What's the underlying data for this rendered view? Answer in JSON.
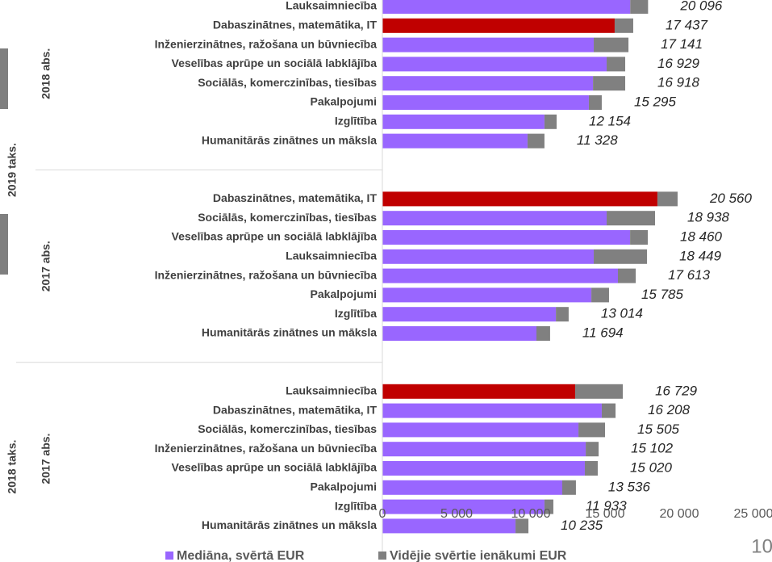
{
  "chart_data": {
    "type": "bar",
    "orientation": "horizontal",
    "xlim": [
      0,
      25000
    ],
    "xticks": [
      0,
      {
        "value": 5000,
        "label": "5 000"
      },
      {
        "value": 10000,
        "label": "10 000"
      },
      {
        "value": 15000,
        "label": "15 000"
      },
      {
        "value": 20000,
        "label": "20 000"
      },
      {
        "value": 25000,
        "label": "25 000"
      }
    ],
    "series": [
      {
        "name": "Mediāna, svērtā EUR",
        "color": "#9966ff"
      },
      {
        "name": "Vidējie svērtie ienākumi EUR",
        "color": "#808080"
      }
    ],
    "groups": [
      {
        "name": "2019 taks.",
        "subgroups": [
          {
            "name": "2018 abs.",
            "categories": [
              "Lauksaimniecība",
              "Dabaszinātnes, matemātika, IT",
              "Inženierzinātnes, ražošana un būvniecība",
              "Veselības aprūpe un sociālā labklājība",
              "Sociālās, komerczinības, tiesības",
              "Pakalpojumi",
              "Izglītība",
              "Humanitārās zinātnes un māksla"
            ],
            "series": [
              {
                "values": [
                  16700,
                  15650,
                  14240,
                  15110,
                  14190,
                  13910,
                  10920,
                  9780
                ],
                "colors": [
                  "#9966ff",
                  "#c00000",
                  "#9966ff",
                  "#9966ff",
                  "#9966ff",
                  "#9966ff",
                  "#9966ff",
                  "#9966ff"
                ]
              },
              {
                "values": [
                  1200,
                  1250,
                  2340,
                  1250,
                  2170,
                  870,
                  820,
                  1140
                ]
              }
            ],
            "labels": [
              20096,
              17437,
              17141,
              16929,
              16918,
              15295,
              12154,
              11328
            ],
            "value_labels": [
              "20 096",
              "17 437",
              "17 141",
              "16 929",
              "16 918",
              "15 295",
              "12 154",
              "11 328"
            ]
          },
          {
            "name": "2017 abs.",
            "categories": [
              "Dabaszinātnes, matemātika, IT",
              "Sociālās, komerczinības, tiesības",
              "Veselības aprūpe un sociālā labklājība",
              "Lauksaimniecība",
              "Inženierzinātnes, ražošana un būvniecība",
              "Pakalpojumi",
              "Izglītība",
              "Humanitārās zinātnes un māksla"
            ],
            "series": [
              {
                "values": [
                  18530,
                  15110,
                  16690,
                  14240,
                  15870,
                  14080,
                  11690,
                  10380
                ],
                "colors": [
                  "#c00000",
                  "#9966ff",
                  "#9966ff",
                  "#9966ff",
                  "#9966ff",
                  "#9966ff",
                  "#9966ff",
                  "#9966ff"
                ]
              },
              {
                "values": [
                  1360,
                  3260,
                  1190,
                  3590,
                  1200,
                  1190,
                  860,
                  920
                ]
              }
            ],
            "labels": [
              20560,
              18938,
              18460,
              18449,
              17613,
              15785,
              13014,
              11694
            ],
            "value_labels": [
              "20 560",
              "18 938",
              "18 460",
              "18 449",
              "17 613",
              "15 785",
              "13 014",
              "11 694"
            ]
          }
        ]
      },
      {
        "name": "2018 taks.",
        "subgroups": [
          {
            "name": "2017 abs.",
            "categories": [
              "Lauksaimniecība",
              "Dabaszinātnes, matemātika, IT",
              "Sociālās, komerczinības, tiesības",
              "Inženierzinātnes, ražošana un būvniecība",
              "Veselības aprūpe un sociālā labklājība",
              "Pakalpojumi",
              "Izglītība",
              "Humanitārās zinātnes un māksla"
            ],
            "series": [
              {
                "values": [
                  12990,
                  14780,
                  13210,
                  13700,
                  13640,
                  12120,
                  10920,
                  8970
                ],
                "colors": [
                  "#c00000",
                  "#9966ff",
                  "#9966ff",
                  "#9966ff",
                  "#9966ff",
                  "#9966ff",
                  "#9966ff",
                  "#9966ff"
                ]
              },
              {
                "values": [
                  3210,
                  930,
                  1790,
                  870,
                  870,
                  920,
                  600,
                  870
                ]
              }
            ],
            "labels": [
              16729,
              16208,
              15505,
              15102,
              15020,
              13536,
              11933,
              10235
            ],
            "value_labels": [
              "16 729",
              "16 208",
              "15 505",
              "15 102",
              "15 020",
              "13 536",
              "11 933",
              "10 235"
            ]
          }
        ]
      }
    ],
    "page_number": "10"
  }
}
